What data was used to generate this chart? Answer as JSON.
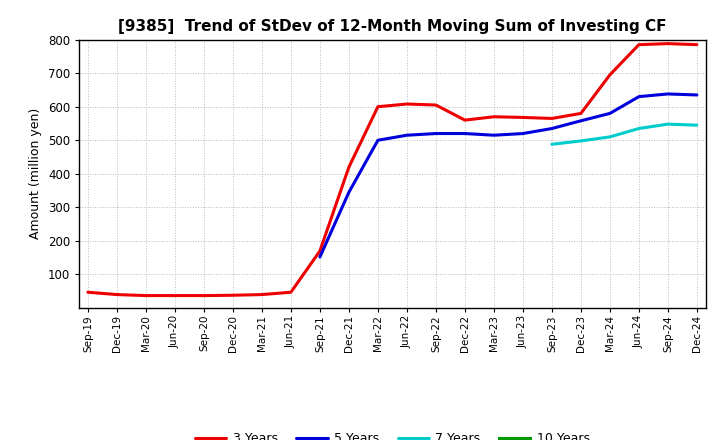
{
  "title": "[9385]  Trend of StDev of 12-Month Moving Sum of Investing CF",
  "ylabel": "Amount (million yen)",
  "ylim": [
    0,
    800
  ],
  "yticks": [
    100,
    200,
    300,
    400,
    500,
    600,
    700,
    800
  ],
  "background_color": "#ffffff",
  "plot_bg_color": "#ffffff",
  "grid_color": "#bbbbbb",
  "x_labels": [
    "Sep-19",
    "Dec-19",
    "Mar-20",
    "Jun-20",
    "Sep-20",
    "Dec-20",
    "Mar-21",
    "Jun-21",
    "Sep-21",
    "Dec-21",
    "Mar-22",
    "Jun-22",
    "Sep-22",
    "Dec-22",
    "Mar-23",
    "Jun-23",
    "Sep-23",
    "Dec-23",
    "Mar-24",
    "Jun-24",
    "Sep-24",
    "Dec-24"
  ],
  "series": {
    "3 Years": {
      "color": "#ee0000",
      "data_x": [
        0,
        1,
        2,
        3,
        4,
        5,
        6,
        7,
        8,
        9,
        10,
        11,
        12,
        13,
        14,
        15,
        16,
        17,
        18,
        19,
        20,
        21
      ],
      "data_y": [
        47,
        40,
        37,
        37,
        37,
        38,
        40,
        47,
        170,
        420,
        600,
        608,
        605,
        560,
        570,
        568,
        565,
        580,
        695,
        785,
        788,
        785
      ]
    },
    "5 Years": {
      "color": "#0000dd",
      "data_x": [
        8,
        9,
        10,
        11,
        12,
        13,
        14,
        15,
        16,
        17,
        18,
        19,
        20,
        21
      ],
      "data_y": [
        152,
        345,
        500,
        515,
        520,
        520,
        515,
        520,
        535,
        558,
        580,
        630,
        638,
        635
      ]
    },
    "7 Years": {
      "color": "#00cccc",
      "data_x": [
        16,
        17,
        18,
        19,
        20,
        21
      ],
      "data_y": [
        488,
        498,
        510,
        535,
        548,
        545
      ]
    },
    "10 Years": {
      "color": "#009900",
      "data_x": [],
      "data_y": []
    }
  },
  "legend_order": [
    "3 Years",
    "5 Years",
    "7 Years",
    "10 Years"
  ]
}
